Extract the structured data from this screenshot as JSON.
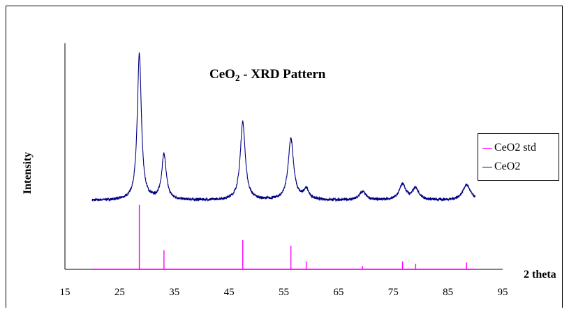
{
  "chart_data": {
    "type": "line",
    "title_main": "CeO",
    "title_sub": "2",
    "title_rest": " - XRD Pattern",
    "xlabel": "2 theta",
    "ylabel": "Intensity",
    "xlim": [
      15,
      95
    ],
    "ylim": [
      0,
      100
    ],
    "xticks": [
      "15",
      "25",
      "35",
      "45",
      "55",
      "65",
      "75",
      "85",
      "95"
    ],
    "legend_position": "right",
    "series": [
      {
        "name": "CeO2 std",
        "color": "#ff00ff",
        "style": "stick",
        "x": [
          28.6,
          33.1,
          47.5,
          56.3,
          59.1,
          69.4,
          76.7,
          79.1,
          88.4
        ],
        "y": [
          28.5,
          8.5,
          13.0,
          10.5,
          3.5,
          1.5,
          3.5,
          2.5,
          3.0
        ]
      },
      {
        "name": "CeO2",
        "color": "#000080",
        "style": "line",
        "x_range": [
          20,
          90
        ],
        "baseline": 30.5,
        "peaks": [
          {
            "x": 28.6,
            "height": 64.5,
            "width": 0.45
          },
          {
            "x": 33.1,
            "height": 20.0,
            "width": 0.5
          },
          {
            "x": 47.5,
            "height": 34.5,
            "width": 0.55
          },
          {
            "x": 56.3,
            "height": 27.0,
            "width": 0.6
          },
          {
            "x": 59.1,
            "height": 4.5,
            "width": 0.6
          },
          {
            "x": 69.4,
            "height": 3.8,
            "width": 0.7
          },
          {
            "x": 76.7,
            "height": 7.0,
            "width": 0.7
          },
          {
            "x": 79.1,
            "height": 5.2,
            "width": 0.7
          },
          {
            "x": 88.4,
            "height": 6.8,
            "width": 0.85
          }
        ]
      }
    ]
  }
}
